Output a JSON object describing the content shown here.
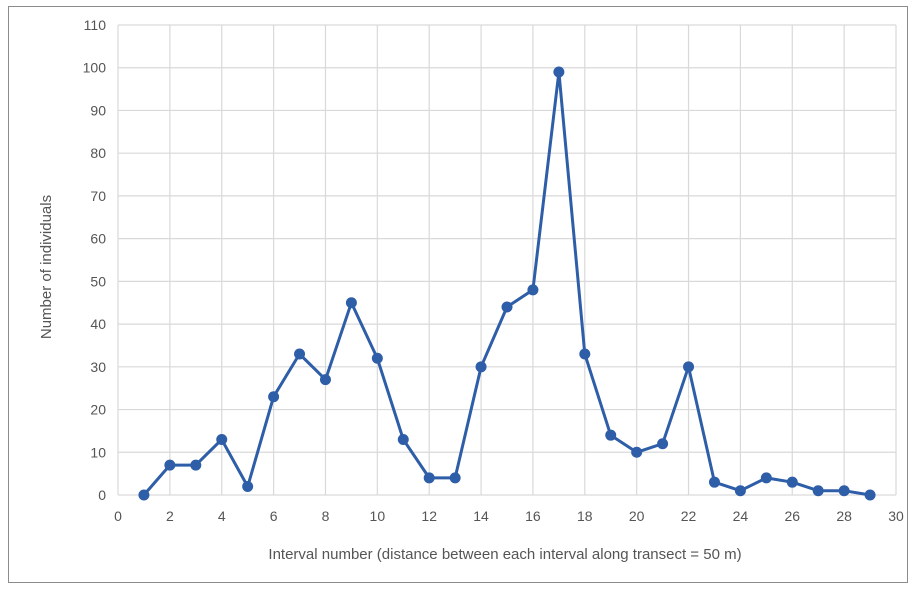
{
  "colors": {
    "series": "#2e5ea8",
    "grid": "#d9d9d9",
    "axis_text": "#555555"
  },
  "chart_data": {
    "type": "line",
    "title": "",
    "xlabel": "Interval number (distance between each interval along transect = 50 m)",
    "ylabel": "Number of individuals",
    "xlim": [
      0,
      30
    ],
    "ylim": [
      0,
      110
    ],
    "x_ticks": [
      0,
      2,
      4,
      6,
      8,
      10,
      12,
      14,
      16,
      18,
      20,
      22,
      24,
      26,
      28,
      30
    ],
    "y_ticks": [
      0,
      10,
      20,
      30,
      40,
      50,
      60,
      70,
      80,
      90,
      100,
      110
    ],
    "grid": true,
    "markers": "circle",
    "series": [
      {
        "x": [
          1,
          2,
          3,
          4,
          5,
          6,
          7,
          8,
          9,
          10,
          11,
          12,
          13,
          14,
          15,
          16,
          17,
          18,
          19,
          20,
          21,
          22,
          23,
          24,
          25,
          26,
          27,
          28,
          29
        ],
        "values": [
          0,
          7,
          7,
          13,
          2,
          23,
          33,
          27,
          45,
          32,
          13,
          4,
          4,
          30,
          44,
          48,
          99,
          33,
          14,
          10,
          12,
          30,
          3,
          1,
          4,
          3,
          1,
          1,
          0
        ]
      }
    ]
  }
}
